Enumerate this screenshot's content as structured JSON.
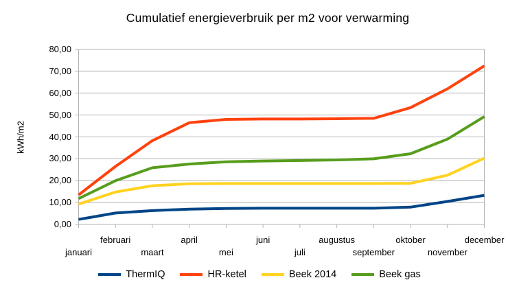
{
  "colors": {
    "grid": "#b3b3b3",
    "plot_border": "#b3b3b3",
    "text": "#000000",
    "background": "#ffffff"
  },
  "y_axis": {
    "tick_labels": [
      "80,00",
      "70,00",
      "60,00",
      "50,00",
      "40,00",
      "30,00",
      "20,00",
      "10,00",
      "0,00"
    ]
  },
  "chart_data": {
    "type": "line",
    "title": "Cumulatief energieverbruik per m2 voor verwarming",
    "xlabel": "",
    "ylabel": "kWh/m2",
    "ylim": [
      0,
      80
    ],
    "y_tick_step": 10,
    "grid": "horizontal",
    "legend_position": "bottom",
    "x_labels_staggered": true,
    "categories": [
      "januari",
      "februari",
      "maart",
      "april",
      "mei",
      "juni",
      "juli",
      "augustus",
      "september",
      "oktober",
      "november",
      "december"
    ],
    "series": [
      {
        "name": "ThermIQ",
        "color": "#004586",
        "values": [
          2.3,
          5.2,
          6.3,
          7.0,
          7.3,
          7.4,
          7.4,
          7.4,
          7.4,
          7.9,
          10.5,
          13.3
        ]
      },
      {
        "name": "HR-ketel",
        "color": "#ff420e",
        "values": [
          13.5,
          26.5,
          38.3,
          46.5,
          48.0,
          48.2,
          48.2,
          48.3,
          48.5,
          53.4,
          62.0,
          72.5
        ]
      },
      {
        "name": "Beek 2014",
        "color": "#ffd320",
        "values": [
          9.3,
          14.8,
          17.7,
          18.6,
          18.7,
          18.7,
          18.7,
          18.7,
          18.7,
          18.8,
          22.5,
          30.3
        ]
      },
      {
        "name": "Beek gas",
        "color": "#579d1c",
        "values": [
          11.8,
          20.0,
          25.9,
          27.6,
          28.6,
          29.0,
          29.2,
          29.5,
          30.0,
          32.3,
          39.0,
          49.3
        ]
      }
    ]
  }
}
